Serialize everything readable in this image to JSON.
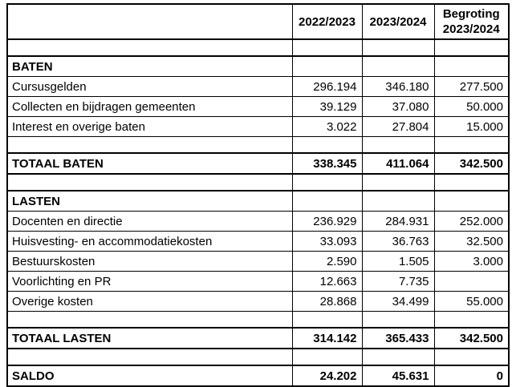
{
  "page": {
    "background_color": "#ffffff",
    "border_color": "#000000",
    "text_color": "#000000"
  },
  "table": {
    "header": {
      "label": "",
      "col1": "2022/2023",
      "col2": "2023/2024",
      "col3": "Begroting 2023/2024"
    },
    "rows": [
      {
        "type": "empty",
        "label": "",
        "v1": "",
        "v2": "",
        "v3": ""
      },
      {
        "type": "section",
        "label": "BATEN",
        "v1": "",
        "v2": "",
        "v3": ""
      },
      {
        "type": "data",
        "label": "Cursusgelden",
        "v1": "296.194",
        "v2": "346.180",
        "v3": "277.500"
      },
      {
        "type": "data",
        "label": "Collecten en bijdragen gemeenten",
        "v1": "39.129",
        "v2": "37.080",
        "v3": "50.000"
      },
      {
        "type": "data",
        "label": "Interest en overige baten",
        "v1": "3.022",
        "v2": "27.804",
        "v3": "15.000"
      },
      {
        "type": "empty",
        "label": "",
        "v1": "",
        "v2": "",
        "v3": ""
      },
      {
        "type": "total",
        "label": "TOTAAL BATEN",
        "v1": "338.345",
        "v2": "411.064",
        "v3": "342.500"
      },
      {
        "type": "empty",
        "label": "",
        "v1": "",
        "v2": "",
        "v3": ""
      },
      {
        "type": "section",
        "label": "LASTEN",
        "v1": "",
        "v2": "",
        "v3": ""
      },
      {
        "type": "data",
        "label": "Docenten en directie",
        "v1": "236.929",
        "v2": "284.931",
        "v3": "252.000"
      },
      {
        "type": "data",
        "label": "Huisvesting- en accommodatiekosten",
        "v1": "33.093",
        "v2": "36.763",
        "v3": "32.500"
      },
      {
        "type": "data",
        "label": "Bestuurskosten",
        "v1": "2.590",
        "v2": "1.505",
        "v3": "3.000"
      },
      {
        "type": "data",
        "label": "Voorlichting en PR",
        "v1": "12.663",
        "v2": "7.735",
        "v3": ""
      },
      {
        "type": "data",
        "label": "Overige kosten",
        "v1": "28.868",
        "v2": "34.499",
        "v3": "55.000"
      },
      {
        "type": "empty",
        "label": "",
        "v1": "",
        "v2": "",
        "v3": ""
      },
      {
        "type": "total",
        "label": "TOTAAL LASTEN",
        "v1": "314.142",
        "v2": "365.433",
        "v3": "342.500"
      },
      {
        "type": "empty",
        "label": "",
        "v1": "",
        "v2": "",
        "v3": ""
      },
      {
        "type": "total",
        "label": "SALDO",
        "v1": "24.202",
        "v2": "45.631",
        "v3": "0"
      }
    ]
  }
}
